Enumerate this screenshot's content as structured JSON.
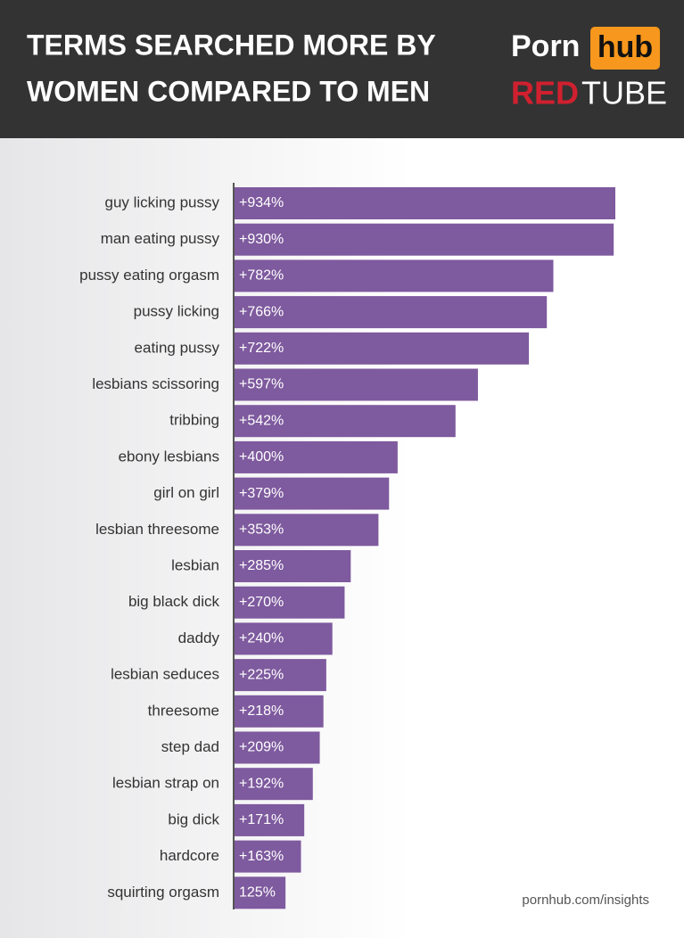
{
  "chart_data": {
    "type": "bar",
    "orientation": "horizontal",
    "title_lines": [
      "TERMS SEARCHED MORE BY",
      "WOMEN COMPARED TO MEN"
    ],
    "logos": {
      "porn": "Porn",
      "hub": "hub",
      "red": "RED",
      "tube": "TUBE"
    },
    "categories": [
      "guy licking pussy",
      "man eating pussy",
      "pussy eating orgasm",
      "pussy licking",
      "eating pussy",
      "lesbians scissoring",
      "tribbing",
      "ebony lesbians",
      "girl on girl",
      "lesbian threesome",
      "lesbian",
      "big black dick",
      "daddy",
      "lesbian seduces",
      "threesome",
      "step dad",
      "lesbian strap on",
      "big dick",
      "hardcore",
      "squirting orgasm"
    ],
    "values": [
      934,
      930,
      782,
      766,
      722,
      597,
      542,
      400,
      379,
      353,
      285,
      270,
      240,
      225,
      218,
      209,
      192,
      171,
      163,
      125
    ],
    "value_labels": [
      "+934%",
      "+930%",
      "+782%",
      "+766%",
      "+722%",
      "+597%",
      "+542%",
      "+400%",
      "+379%",
      "+353%",
      "+285%",
      "+270%",
      "+240%",
      "+225%",
      "+218%",
      "+209%",
      "+192%",
      "+171%",
      "+163%",
      "125%"
    ],
    "color": "#7e5a9e",
    "source": "pornhub.com/insights"
  }
}
